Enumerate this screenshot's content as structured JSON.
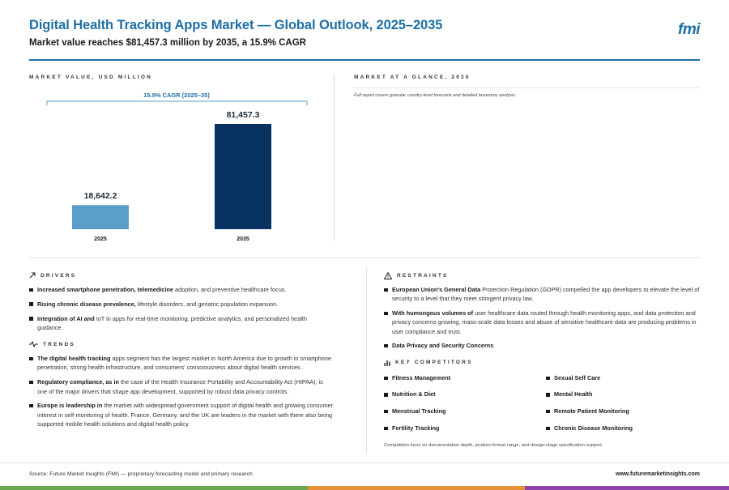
{
  "header": {
    "title": "Digital Health Tracking Apps Market — Global Outlook, 2025–2035",
    "subtitle": "Market value reaches $81,457.3 million by 2035, a 15.9% CAGR",
    "logo": "fmi"
  },
  "chart_section": {
    "label": "MARKET VALUE, USD MILLION"
  },
  "chart_data": {
    "type": "bar",
    "title": "",
    "xlabel": "",
    "ylabel": "",
    "categories": [
      "2025",
      "2035"
    ],
    "values": [
      18642.2,
      81457.3
    ],
    "value_labels": [
      "18,642.2",
      "81,457.3"
    ],
    "bar_colors": [
      "#5a9fcb",
      "#073262"
    ],
    "annotation": "15.9% CAGR (2025–35)",
    "ylim": [
      0,
      90000
    ],
    "grid": false,
    "legend": "none"
  },
  "glance": {
    "label": "MARKET AT A GLANCE, 2025",
    "note": "Full report covers granular country-level forecasts and detailed taxonomy analysis."
  },
  "drivers": {
    "label": "DRIVERS",
    "items": [
      {
        "bold": "Increased smartphone penetration, telemedicine",
        "text": " adoption, and preventive healthcare focus."
      },
      {
        "bold": "Rising chronic disease prevalence,",
        "text": " lifestyle disorders, and geriatric population expansion."
      },
      {
        "bold": "Integration of AI and",
        "text": " IoT in apps for real-time monitoring, predictive analytics, and personalized health guidance."
      }
    ]
  },
  "trends": {
    "label": "TRENDS",
    "items": [
      {
        "bold": "The digital health tracking",
        "text": " apps segment has the largest market in North America due to growth in smartphone penetration, strong health infrastructure, and consumers' consciousness about digital health services ."
      },
      {
        "bold": "Regulatory compliance, as in",
        "text": " the case of the Health Insurance Portability and Accountability Act (HIPAA), is one of the major drivers that shape app development, supported by robust data privacy controls."
      },
      {
        "bold": "Europe is leadership in",
        "text": " the market with widespread government support of digital health and growing consumer interest in self-monitoring of health. France, Germany, and the UK are leaders in the market with there also being supported mobile health solutions and digital health policy."
      }
    ]
  },
  "restraints": {
    "label": "RESTRAINTS",
    "items": [
      {
        "bold": "European Union's General Data",
        "text": " Protection Regulation (GDPR) compelled the app developers to elevate the level of security to a level that they meet stringent privacy law."
      },
      {
        "bold": "With humongous volumes of",
        "text": " user healthcare data routed through health monitoring apps, and data protection and privacy concerns growing, mass-scale data losses and abuse of sensitive healthcare data are producing problems in user compliance and trust."
      },
      {
        "bold": "Data Privacy and Security Concerns",
        "text": ""
      }
    ]
  },
  "competitors": {
    "label": "KEY COMPETITORS",
    "items": [
      "Fitness Management",
      "Sexual Self Care",
      "Nutrition & Diet",
      "Mental Health",
      "Menstrual Tracking",
      "Remote Patient Monitoring",
      "Fertility Tracking",
      "Chronic Disease Monitoring"
    ],
    "note": "Competition turns on documentation depth, product-format range, and design-stage specification support."
  },
  "footer": {
    "source": "Source: Future Market Insights (FMI) — proprietary forecasting model and primary research",
    "url": "www.futuremarketinsights.com"
  },
  "colors": {
    "brand_blue": "#1d6fa5",
    "bar_light": "#5a9fcb",
    "bar_dark": "#073262",
    "stripe": [
      "#6aa84f",
      "#e69138",
      "#8e44ad"
    ]
  }
}
